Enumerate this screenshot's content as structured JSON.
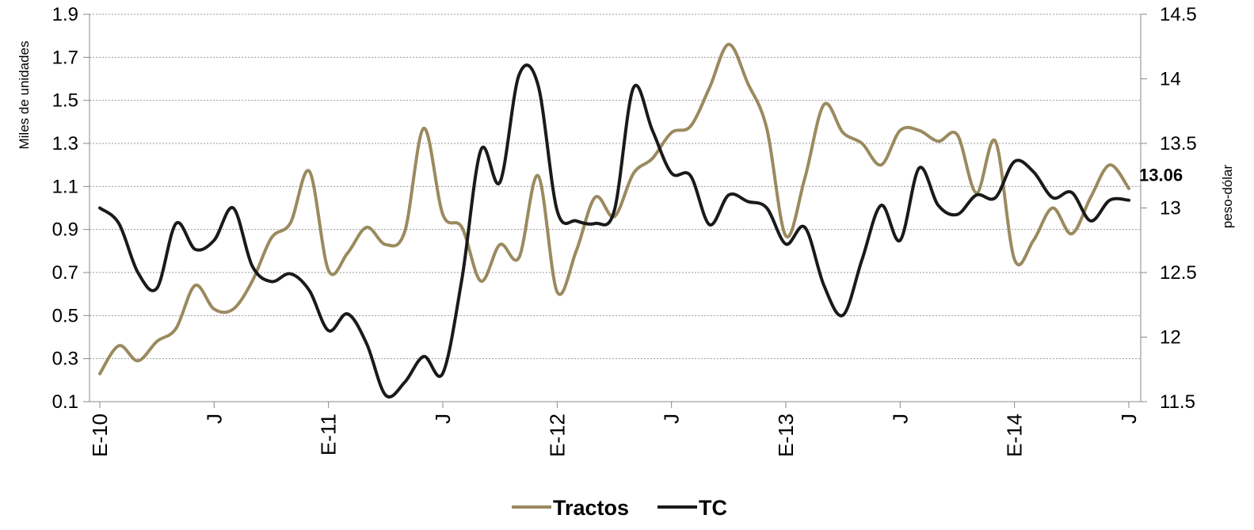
{
  "chart_data": {
    "type": "line",
    "title": "",
    "ylabel_left": "Miles de unidades",
    "ylabel_right": "peso-dólar",
    "grid": true,
    "legend_placement": "bottom",
    "x_tick_labels": [
      "E-10",
      "J",
      "E-11",
      "J",
      "E-12",
      "J",
      "E-13",
      "J",
      "E-14",
      "J"
    ],
    "y_left": {
      "min": 0.1,
      "max": 1.9,
      "ticks": [
        "0.1",
        "0.3",
        "0.5",
        "0.7",
        "0.9",
        "1.1",
        "1.3",
        "1.5",
        "1.7",
        "1.9"
      ]
    },
    "y_right": {
      "min": 11.5,
      "max": 14.5,
      "ticks": [
        "11.5",
        "12",
        "12.5",
        "13",
        "13.5",
        "14",
        "14.5"
      ]
    },
    "series": [
      {
        "name": "Tractos",
        "axis": "left",
        "color": "#9a8a5e",
        "values": [
          0.23,
          0.36,
          0.29,
          0.38,
          0.44,
          0.64,
          0.53,
          0.53,
          0.66,
          0.86,
          0.93,
          1.17,
          0.71,
          0.79,
          0.91,
          0.83,
          0.89,
          1.37,
          0.97,
          0.91,
          0.66,
          0.83,
          0.77,
          1.15,
          0.61,
          0.8,
          1.05,
          0.96,
          1.16,
          1.23,
          1.35,
          1.38,
          1.56,
          1.76,
          1.58,
          1.37,
          0.87,
          1.14,
          1.48,
          1.35,
          1.3,
          1.2,
          1.36,
          1.36,
          1.31,
          1.34,
          1.07,
          1.31,
          0.76,
          0.85,
          1.0,
          0.88,
          1.05,
          1.2,
          1.09
        ]
      },
      {
        "name": "TC",
        "axis": "right",
        "color": "#1a1a1a",
        "values": [
          13.0,
          12.88,
          12.5,
          12.38,
          12.88,
          12.68,
          12.75,
          13.0,
          12.55,
          12.43,
          12.49,
          12.36,
          12.05,
          12.18,
          11.95,
          11.55,
          11.65,
          11.85,
          11.72,
          12.45,
          13.45,
          13.2,
          14.03,
          13.95,
          12.98,
          12.9,
          12.88,
          12.98,
          13.93,
          13.6,
          13.27,
          13.25,
          12.87,
          13.1,
          13.05,
          13.0,
          12.72,
          12.85,
          12.4,
          12.17,
          12.6,
          13.02,
          12.75,
          13.31,
          13.02,
          12.95,
          13.1,
          13.08,
          13.36,
          13.28,
          13.08,
          13.12,
          12.9,
          13.06,
          13.06
        ]
      }
    ],
    "annotations": [
      {
        "text": "13.06",
        "series": "TC",
        "point": "last"
      }
    ]
  }
}
